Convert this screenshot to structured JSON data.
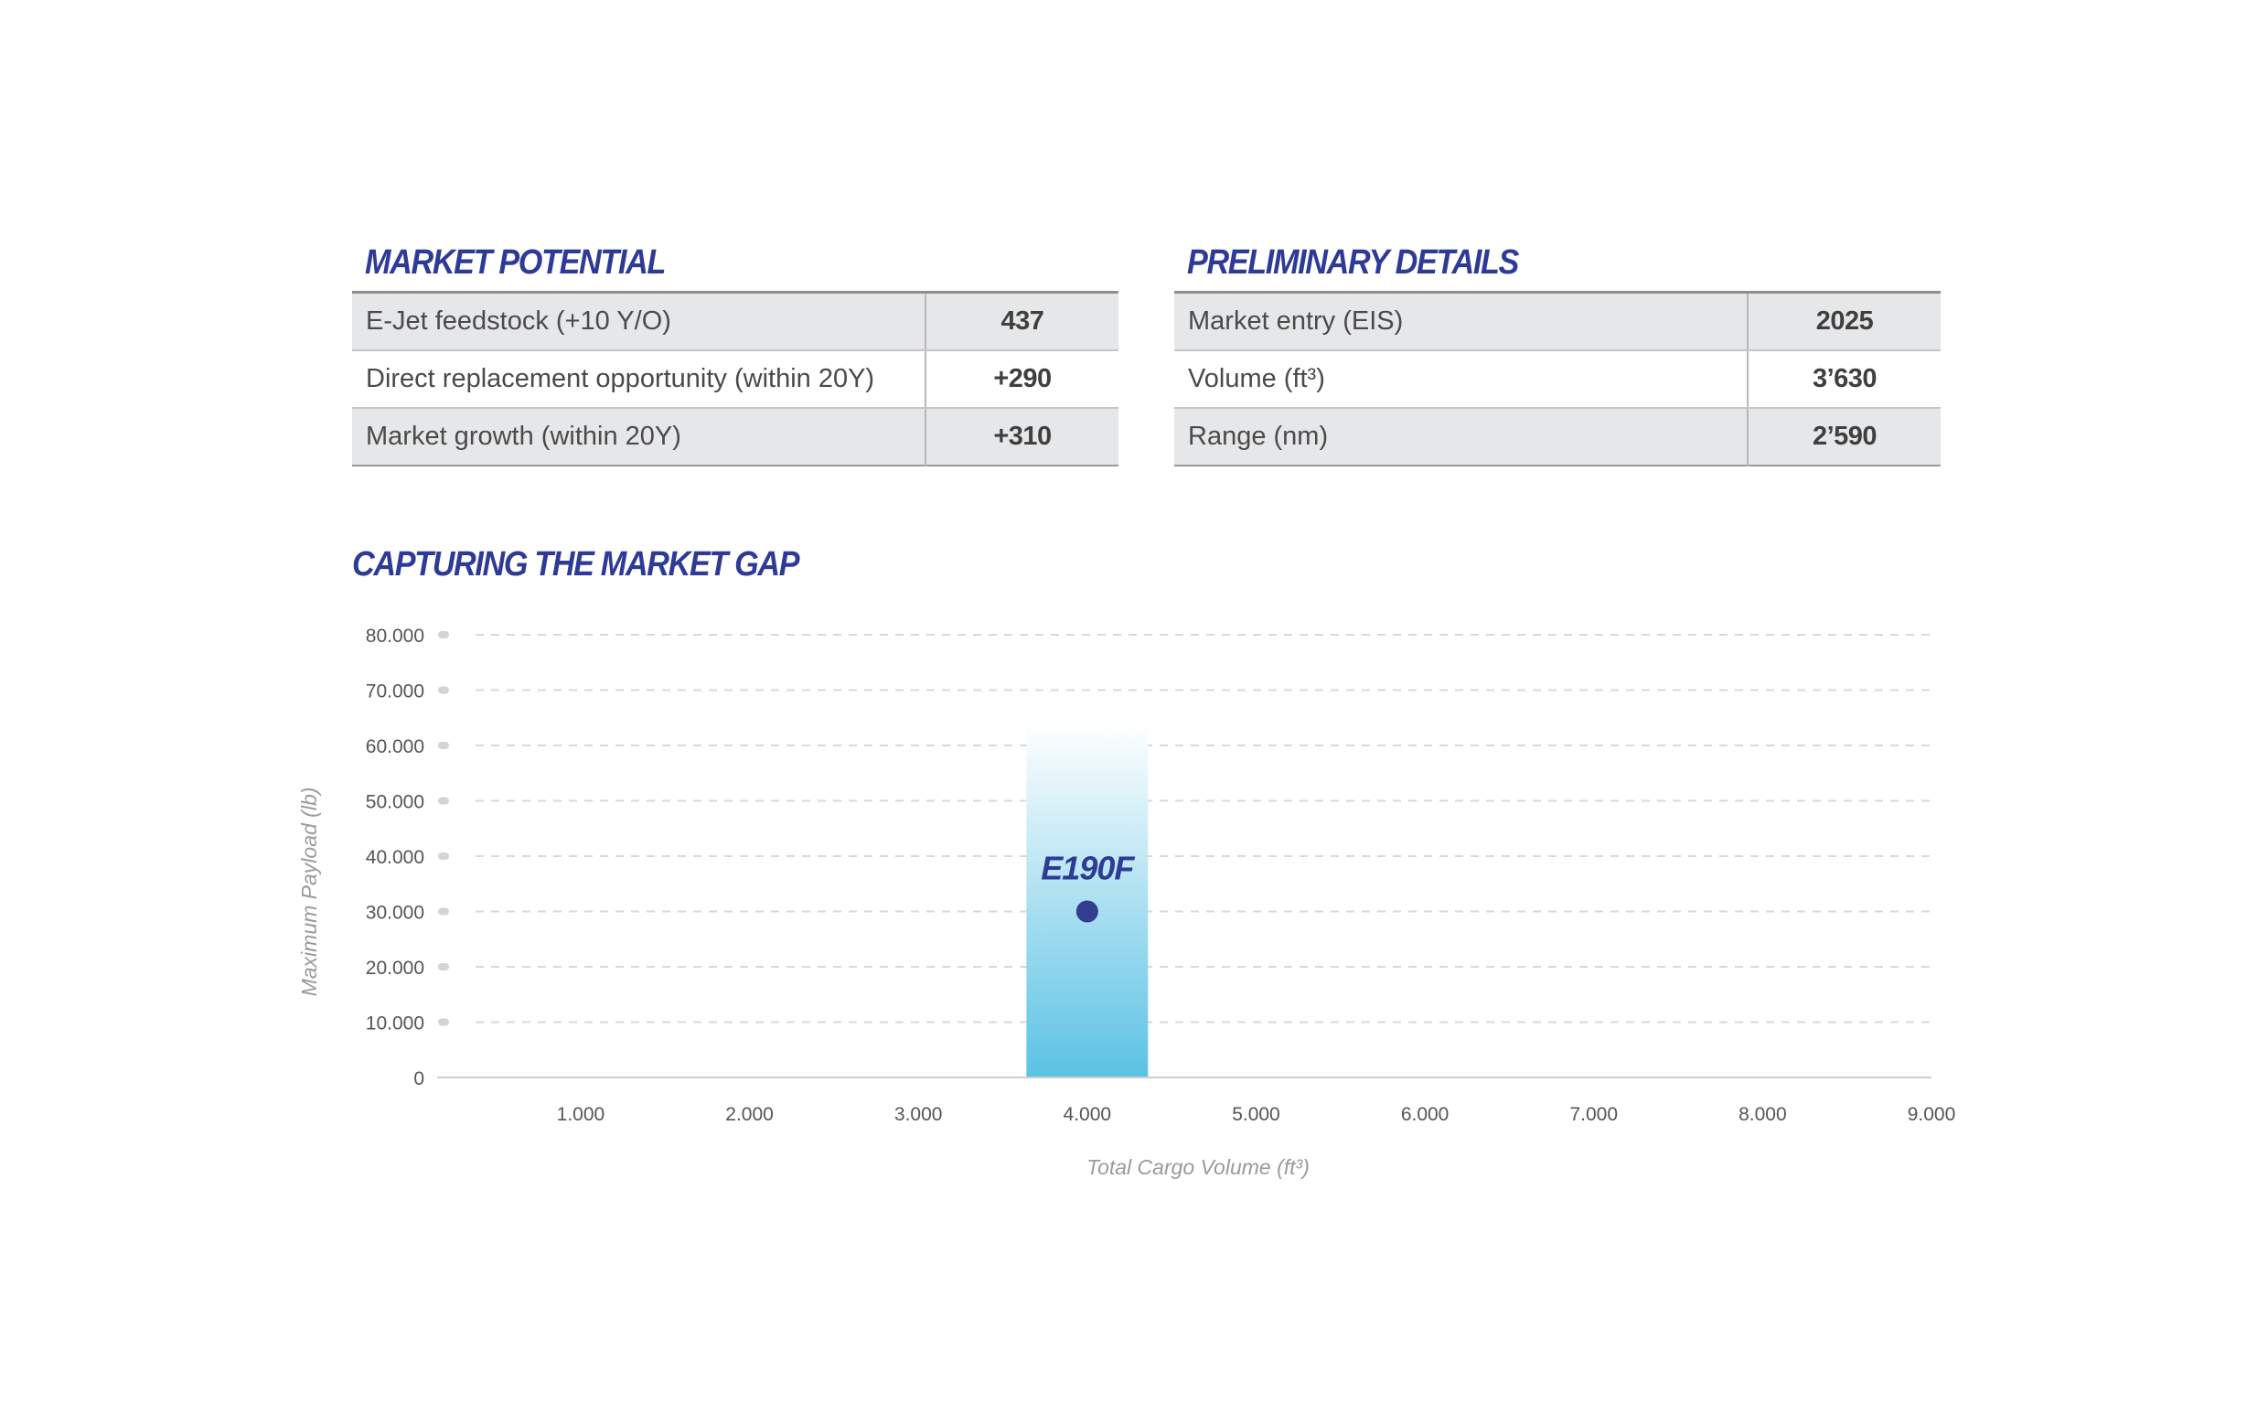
{
  "market_potential": {
    "title": "MARKET POTENTIAL",
    "rows": [
      {
        "label": "E-Jet feedstock (+10 Y/O)",
        "value": "437"
      },
      {
        "label": "Direct replacement opportunity (within 20Y)",
        "value": "+290"
      },
      {
        "label": "Market growth (within 20Y)",
        "value": "+310"
      }
    ]
  },
  "preliminary_details": {
    "title": "PRELIMINARY DETAILS",
    "rows": [
      {
        "label": "Market entry (EIS)",
        "value": "2025"
      },
      {
        "label": "Volume (ft³)",
        "value": "3’630"
      },
      {
        "label": "Range (nm)",
        "value": "2’590"
      }
    ]
  },
  "chart_section": {
    "title": "CAPTURING THE MARKET GAP"
  },
  "chart_data": {
    "type": "scatter",
    "title": "CAPTURING THE MARKET GAP",
    "xlabel": "Total Cargo Volume (ft³)",
    "ylabel": "Maximum Payload (lb)",
    "xlim": [
      150,
      9000
    ],
    "ylim": [
      0,
      80000
    ],
    "x_ticks": [
      1000,
      2000,
      3000,
      4000,
      5000,
      6000,
      7000,
      8000,
      9000
    ],
    "x_tick_labels": [
      "1.000",
      "2.000",
      "3.000",
      "4.000",
      "5.000",
      "6.000",
      "7.000",
      "8.000",
      "9.000"
    ],
    "y_ticks": [
      0,
      10000,
      20000,
      30000,
      40000,
      50000,
      60000,
      70000,
      80000
    ],
    "y_tick_labels": [
      "0",
      "10.000",
      "20.000",
      "30.000",
      "40.000",
      "50.000",
      "60.000",
      "70.000",
      "80.000"
    ],
    "grid": true,
    "points": [
      {
        "label": "E190F",
        "x": 4000,
        "y": 30000
      }
    ],
    "band": {
      "x_from": 3640,
      "x_to": 4360,
      "y_from": 0,
      "y_to": 64000
    },
    "colors": {
      "point": "#333d8e",
      "label": "#2e3b96",
      "band_bottom": "#5bc2e4",
      "band_top": "#ffffff",
      "grid": "#d9d9d9",
      "axis_label": "#9a9a9a"
    }
  }
}
